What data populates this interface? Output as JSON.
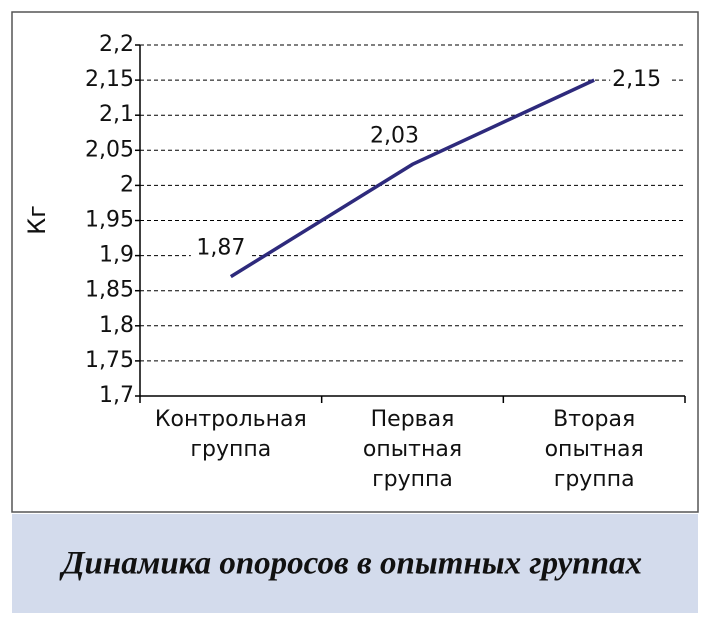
{
  "chart_data": {
    "type": "line",
    "title": "Динамика опоросов в опытных группах",
    "y_label": "Кг",
    "categories": [
      "Контрольная группа",
      "Первая опытная группа",
      "Вторая опытная группа"
    ],
    "series": [
      {
        "name": "Кг",
        "color": "#2e2a7c",
        "values": [
          1.87,
          2.03,
          2.15
        ],
        "value_labels": [
          "1,87",
          "2,03",
          "2,15"
        ]
      }
    ],
    "ylim": [
      1.7,
      2.2
    ],
    "yticks": [
      {
        "value": 1.7,
        "label": "1,7"
      },
      {
        "value": 1.75,
        "label": "1,75"
      },
      {
        "value": 1.8,
        "label": "1,8"
      },
      {
        "value": 1.85,
        "label": "1,85"
      },
      {
        "value": 1.9,
        "label": "1,9"
      },
      {
        "value": 1.95,
        "label": "1,95"
      },
      2,
      {
        "value": 2.05,
        "label": "2,05"
      },
      {
        "value": 2.1,
        "label": "2,1"
      },
      {
        "value": 2.15,
        "label": "2,15"
      },
      {
        "value": 2.2,
        "label": "2,2"
      }
    ],
    "grid": true
  }
}
